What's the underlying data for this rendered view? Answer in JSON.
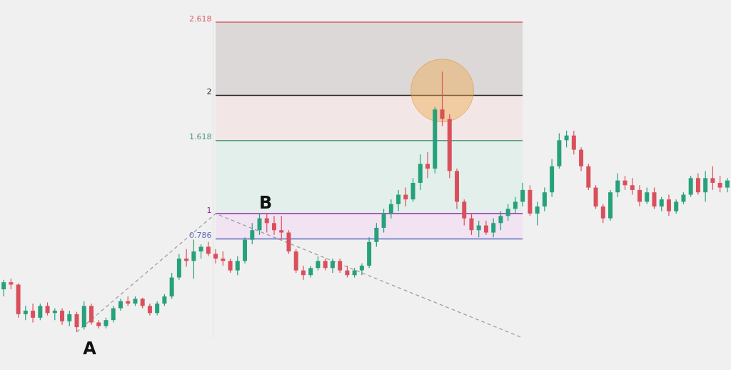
{
  "chart_data": {
    "type": "candlestick",
    "categories": [
      null,
      null,
      null,
      null,
      null,
      null,
      null,
      null,
      null,
      null,
      null,
      null,
      null,
      null,
      null,
      null,
      null,
      null,
      null,
      null,
      null,
      null,
      null,
      null,
      null,
      null,
      null,
      null,
      null,
      null,
      null,
      null,
      null,
      null,
      null,
      null,
      null,
      null,
      null,
      null,
      null,
      null,
      null,
      null,
      null,
      null,
      null,
      null,
      null,
      null,
      null,
      null,
      null,
      null,
      null,
      null,
      null,
      null,
      null,
      null,
      null,
      null,
      null,
      null,
      null,
      null,
      null,
      null,
      null,
      null,
      null,
      null,
      null,
      null,
      null,
      null,
      null,
      null,
      null,
      null,
      null,
      null,
      null,
      null,
      null,
      null,
      null,
      null,
      null,
      null,
      null,
      null,
      null,
      null,
      null,
      null,
      null,
      null,
      null,
      null
    ],
    "ohlc": [
      [
        0.36,
        0.44,
        0.3,
        0.42
      ],
      [
        0.42,
        0.45,
        0.36,
        0.4
      ],
      [
        0.4,
        0.41,
        0.12,
        0.15
      ],
      [
        0.15,
        0.22,
        0.1,
        0.18
      ],
      [
        0.18,
        0.24,
        0.08,
        0.12
      ],
      [
        0.12,
        0.24,
        0.1,
        0.22
      ],
      [
        0.22,
        0.25,
        0.14,
        0.16
      ],
      [
        0.16,
        0.2,
        0.1,
        0.18
      ],
      [
        0.18,
        0.2,
        0.06,
        0.09
      ],
      [
        0.09,
        0.18,
        0.05,
        0.15
      ],
      [
        0.15,
        0.17,
        0.0,
        0.04
      ],
      [
        0.04,
        0.26,
        0.02,
        0.22
      ],
      [
        0.22,
        0.24,
        0.06,
        0.08
      ],
      [
        0.08,
        0.1,
        0.03,
        0.05
      ],
      [
        0.05,
        0.12,
        0.03,
        0.1
      ],
      [
        0.1,
        0.22,
        0.08,
        0.2
      ],
      [
        0.2,
        0.28,
        0.18,
        0.26
      ],
      [
        0.26,
        0.3,
        0.22,
        0.24
      ],
      [
        0.24,
        0.3,
        0.22,
        0.28
      ],
      [
        0.28,
        0.29,
        0.2,
        0.22
      ],
      [
        0.22,
        0.24,
        0.14,
        0.16
      ],
      [
        0.16,
        0.26,
        0.14,
        0.24
      ],
      [
        0.24,
        0.32,
        0.22,
        0.3
      ],
      [
        0.3,
        0.5,
        0.28,
        0.46
      ],
      [
        0.46,
        0.66,
        0.44,
        0.62
      ],
      [
        0.62,
        0.7,
        0.55,
        0.6
      ],
      [
        0.6,
        0.78,
        0.45,
        0.68
      ],
      [
        0.68,
        0.74,
        0.62,
        0.72
      ],
      [
        0.72,
        0.76,
        0.64,
        0.66
      ],
      [
        0.66,
        0.7,
        0.58,
        0.62
      ],
      [
        0.62,
        0.68,
        0.56,
        0.6
      ],
      [
        0.6,
        0.62,
        0.5,
        0.52
      ],
      [
        0.52,
        0.64,
        0.48,
        0.6
      ],
      [
        0.6,
        0.8,
        0.58,
        0.78
      ],
      [
        0.78,
        0.92,
        0.74,
        0.86
      ],
      [
        0.86,
        1.0,
        0.82,
        0.96
      ],
      [
        0.96,
        1.0,
        0.84,
        0.92
      ],
      [
        0.92,
        0.98,
        0.82,
        0.86
      ],
      [
        0.86,
        0.98,
        0.78,
        0.84
      ],
      [
        0.84,
        0.86,
        0.66,
        0.68
      ],
      [
        0.68,
        0.7,
        0.5,
        0.52
      ],
      [
        0.52,
        0.56,
        0.44,
        0.48
      ],
      [
        0.48,
        0.56,
        0.46,
        0.54
      ],
      [
        0.54,
        0.64,
        0.52,
        0.6
      ],
      [
        0.6,
        0.62,
        0.52,
        0.54
      ],
      [
        0.54,
        0.62,
        0.5,
        0.6
      ],
      [
        0.6,
        0.62,
        0.5,
        0.52
      ],
      [
        0.52,
        0.56,
        0.46,
        0.48
      ],
      [
        0.48,
        0.54,
        0.46,
        0.52
      ],
      [
        0.52,
        0.58,
        0.48,
        0.56
      ],
      [
        0.56,
        0.8,
        0.54,
        0.76
      ],
      [
        0.76,
        0.92,
        0.72,
        0.88
      ],
      [
        0.88,
        1.04,
        0.84,
        1.0
      ],
      [
        1.0,
        1.12,
        0.96,
        1.08
      ],
      [
        1.08,
        1.2,
        1.02,
        1.16
      ],
      [
        1.16,
        1.22,
        1.06,
        1.12
      ],
      [
        1.12,
        1.3,
        1.1,
        1.26
      ],
      [
        1.26,
        1.5,
        1.2,
        1.42
      ],
      [
        1.42,
        1.52,
        1.3,
        1.38
      ],
      [
        1.38,
        1.9,
        1.34,
        1.88
      ],
      [
        1.88,
        2.2,
        1.74,
        1.8
      ],
      [
        1.8,
        1.84,
        1.3,
        1.36
      ],
      [
        1.36,
        1.38,
        1.04,
        1.1
      ],
      [
        1.1,
        1.12,
        0.9,
        0.96
      ],
      [
        0.96,
        1.0,
        0.82,
        0.86
      ],
      [
        0.86,
        0.94,
        0.8,
        0.9
      ],
      [
        0.9,
        0.94,
        0.82,
        0.84
      ],
      [
        0.84,
        0.96,
        0.8,
        0.92
      ],
      [
        0.92,
        1.02,
        0.86,
        0.98
      ],
      [
        0.98,
        1.08,
        0.94,
        1.04
      ],
      [
        1.04,
        1.14,
        1.0,
        1.1
      ],
      [
        1.1,
        1.26,
        1.06,
        1.2
      ],
      [
        1.2,
        1.24,
        0.98,
        1.0
      ],
      [
        1.0,
        1.1,
        0.9,
        1.06
      ],
      [
        1.06,
        1.22,
        1.02,
        1.18
      ],
      [
        1.18,
        1.46,
        1.14,
        1.4
      ],
      [
        1.4,
        1.68,
        1.38,
        1.62
      ],
      [
        1.62,
        1.7,
        1.56,
        1.66
      ],
      [
        1.66,
        1.7,
        1.5,
        1.54
      ],
      [
        1.54,
        1.56,
        1.36,
        1.4
      ],
      [
        1.4,
        1.42,
        1.2,
        1.22
      ],
      [
        1.22,
        1.24,
        1.04,
        1.06
      ],
      [
        1.06,
        1.08,
        0.92,
        0.96
      ],
      [
        0.96,
        1.2,
        0.94,
        1.18
      ],
      [
        1.18,
        1.34,
        1.14,
        1.28
      ],
      [
        1.28,
        1.32,
        1.2,
        1.24
      ],
      [
        1.24,
        1.3,
        1.16,
        1.2
      ],
      [
        1.2,
        1.24,
        1.06,
        1.1
      ],
      [
        1.1,
        1.22,
        1.08,
        1.18
      ],
      [
        1.18,
        1.22,
        1.04,
        1.06
      ],
      [
        1.06,
        1.14,
        1.02,
        1.12
      ],
      [
        1.12,
        1.16,
        0.98,
        1.02
      ],
      [
        1.02,
        1.12,
        1.0,
        1.1
      ],
      [
        1.1,
        1.18,
        1.08,
        1.16
      ],
      [
        1.16,
        1.32,
        1.14,
        1.3
      ],
      [
        1.3,
        1.34,
        1.16,
        1.18
      ],
      [
        1.18,
        1.36,
        1.1,
        1.3
      ],
      [
        1.3,
        1.4,
        1.2,
        1.26
      ],
      [
        1.26,
        1.32,
        1.18,
        1.22
      ],
      [
        1.22,
        1.3,
        1.18,
        1.28
      ]
    ],
    "colors": [
      "#26a17b",
      "#d9505c",
      "#d9505c",
      "#26a17b",
      "#d9505c",
      "#26a17b",
      "#d9505c",
      "#26a17b",
      "#d9505c",
      "#26a17b",
      "#d9505c",
      "#26a17b",
      "#d9505c",
      "#d9505c",
      "#26a17b",
      "#26a17b",
      "#26a17b",
      "#d9505c",
      "#26a17b",
      "#d9505c",
      "#d9505c",
      "#26a17b",
      "#26a17b",
      "#26a17b",
      "#26a17b",
      "#d9505c",
      "#26a17b",
      "#26a17b",
      "#d9505c",
      "#d9505c",
      "#d9505c",
      "#d9505c",
      "#26a17b",
      "#26a17b",
      "#26a17b",
      "#26a17b",
      "#d9505c",
      "#d9505c",
      "#d9505c",
      "#d9505c",
      "#d9505c",
      "#d9505c",
      "#26a17b",
      "#26a17b",
      "#d9505c",
      "#26a17b",
      "#d9505c",
      "#d9505c",
      "#26a17b",
      "#26a17b",
      "#26a17b",
      "#26a17b",
      "#26a17b",
      "#26a17b",
      "#26a17b",
      "#d9505c",
      "#26a17b",
      "#26a17b",
      "#d9505c",
      "#26a17b",
      "#d9505c",
      "#d9505c",
      "#d9505c",
      "#d9505c",
      "#d9505c",
      "#26a17b",
      "#d9505c",
      "#26a17b",
      "#26a17b",
      "#26a17b",
      "#26a17b",
      "#26a17b",
      "#d9505c",
      "#26a17b",
      "#26a17b",
      "#26a17b",
      "#26a17b",
      "#26a17b",
      "#d9505c",
      "#d9505c",
      "#d9505c",
      "#d9505c",
      "#d9505c",
      "#26a17b",
      "#26a17b",
      "#d9505c",
      "#d9505c",
      "#d9505c",
      "#26a17b",
      "#d9505c",
      "#26a17b",
      "#d9505c",
      "#26a17b",
      "#26a17b",
      "#26a17b",
      "#d9505c",
      "#26a17b",
      "#d9505c",
      "#d9505c",
      "#26a17b"
    ],
    "series": [
      {
        "type": "line",
        "values": [
          null,
          null,
          null,
          null,
          null,
          null,
          null,
          null,
          null,
          null,
          0.0,
          null,
          null,
          null,
          null,
          null,
          null,
          null,
          null,
          null,
          null,
          null,
          null,
          null,
          null,
          null,
          null,
          null,
          null,
          1.0,
          null,
          null,
          null,
          null,
          null,
          null,
          null,
          null,
          null,
          null,
          null,
          null,
          null,
          null,
          null,
          null,
          null,
          null,
          null,
          null,
          null,
          null,
          null,
          null,
          null,
          null,
          null,
          null,
          null,
          null,
          null,
          null,
          null,
          null,
          null,
          null,
          null,
          null,
          null,
          null,
          null,
          -0.05,
          null,
          null,
          null,
          null,
          null,
          null,
          null,
          null,
          null,
          null,
          null,
          null,
          null,
          null,
          null,
          null,
          null,
          null,
          null,
          null,
          null,
          null,
          null,
          null,
          null,
          null,
          null,
          null
        ],
        "color": "#9a9a9a",
        "line_style": "dashed"
      }
    ],
    "ylim": [
      -0.05,
      2.618
    ],
    "yticks": [
      0.786,
      1,
      1.618,
      2,
      2.618
    ],
    "tick_labels": "y",
    "ref_lines": [
      {
        "axis": "y",
        "value": 0.786,
        "color": "#5c6bc0"
      },
      {
        "axis": "y",
        "value": 1,
        "color": "#9c27b0"
      },
      {
        "axis": "y",
        "value": 1.618,
        "color": "#4f9a80"
      },
      {
        "axis": "y",
        "value": 2,
        "color": "#222222"
      },
      {
        "axis": "y",
        "value": 2.618,
        "color": "#d9606a"
      }
    ],
    "bands": [
      {
        "axis": "y",
        "from": 0.786,
        "to": 1,
        "color": "#f1e3f1"
      },
      {
        "axis": "y",
        "from": 1,
        "to": 1.618,
        "color": "#e2efea"
      },
      {
        "axis": "y",
        "from": 1.618,
        "to": 2,
        "color": "#f3e6e6"
      },
      {
        "axis": "y",
        "from": 2,
        "to": 2.618,
        "color": "#dcd8d8"
      }
    ],
    "annotations": [
      "A",
      "B"
    ]
  }
}
